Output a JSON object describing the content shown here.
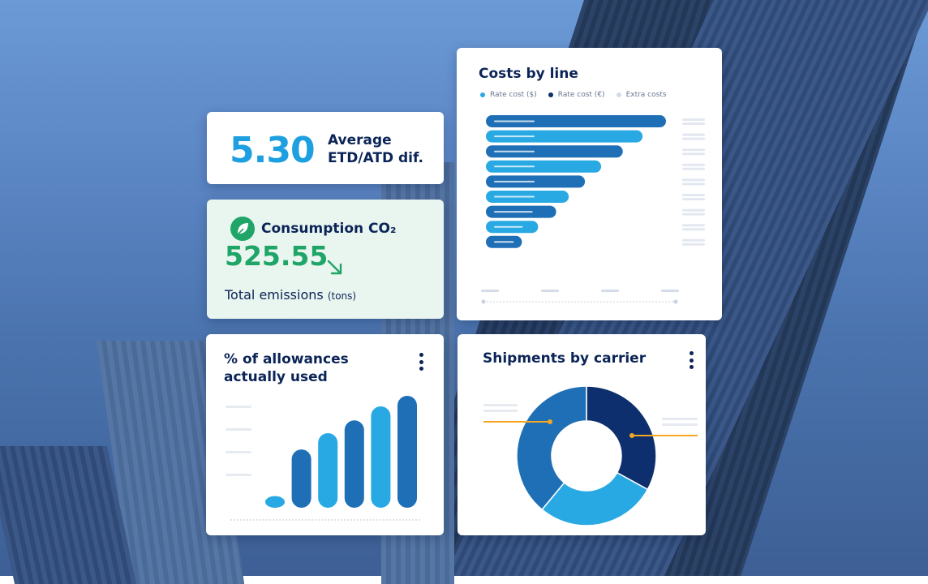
{
  "kpi": {
    "value": "5.30",
    "label_line1": "Average",
    "label_line2": "ETD/ATD dif."
  },
  "co2": {
    "title": "Consumption CO₂",
    "value": "525.55",
    "footer": "Total emissions",
    "footer_unit": "(tons)",
    "trend": "down",
    "icon": "leaf-icon"
  },
  "costs": {
    "title": "Costs by line",
    "legend": [
      "Rate cost ($)",
      "Rate cost (€)",
      "Extra costs"
    ]
  },
  "allowances": {
    "title_line1": "% of allowances",
    "title_line2": "actually used"
  },
  "shipments": {
    "title": "Shipments by carrier"
  },
  "colors": {
    "accent": "#1d9fe0",
    "navy": "#0b2457",
    "mid_blue": "#1f6fb6",
    "green": "#1fa567",
    "orange": "#f5a623"
  },
  "chart_data": [
    {
      "type": "bar",
      "orientation": "horizontal",
      "title": "Costs by line",
      "series_legend": [
        "Rate cost ($)",
        "Rate cost (€)",
        "Extra costs"
      ],
      "values": [
        100,
        87,
        76,
        64,
        55,
        46,
        39,
        29,
        20
      ],
      "bar_colors": [
        "#1f6fb6",
        "#29a9e3",
        "#1f6fb6",
        "#29a9e3",
        "#1f6fb6",
        "#29a9e3",
        "#1f6fb6",
        "#29a9e3",
        "#1f6fb6"
      ]
    },
    {
      "type": "bar",
      "title": "% of allowances actually used",
      "values": [
        1,
        5,
        6.4,
        7.5,
        8.7,
        9.6
      ],
      "bar_colors": [
        "#29a9e3",
        "#1f6fb6",
        "#29a9e3",
        "#1f6fb6",
        "#29a9e3",
        "#1f6fb6"
      ]
    },
    {
      "type": "pie",
      "variant": "donut",
      "title": "Shipments by carrier",
      "values": [
        33,
        28,
        39
      ],
      "slice_colors": [
        "#0e2f6e",
        "#29a9e3",
        "#1f6fb6"
      ]
    }
  ]
}
